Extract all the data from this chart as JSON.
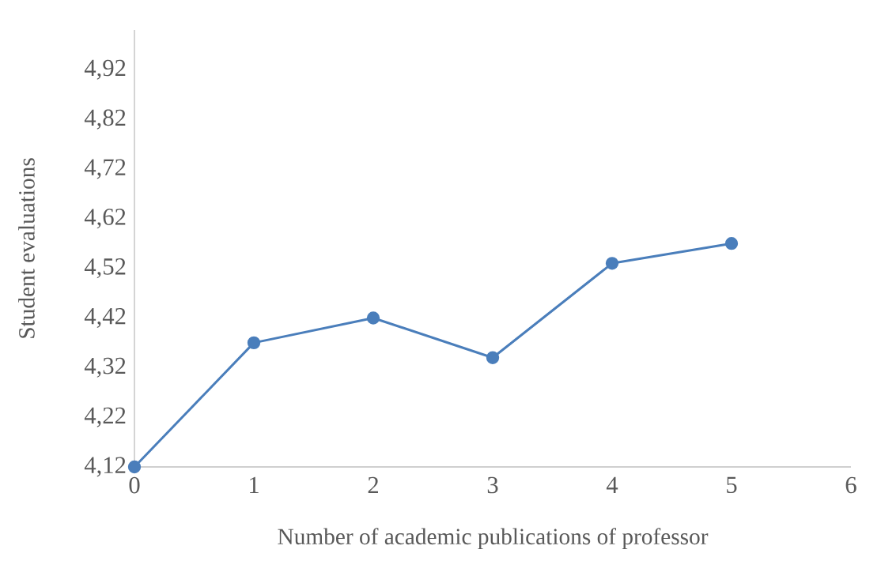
{
  "chart_data": {
    "type": "line",
    "xlabel": "Number of academic publications of professor",
    "ylabel": "Student evaluations",
    "x": [
      0,
      1,
      2,
      3,
      4,
      5
    ],
    "series": [
      {
        "color": "#4a7ebb",
        "values": [
          4.12,
          4.37,
          4.42,
          4.34,
          4.53,
          4.57
        ]
      }
    ],
    "xlim": [
      0,
      6
    ],
    "xticks": [
      0,
      1,
      2,
      3,
      4,
      5,
      6
    ],
    "ylim": [
      4.12,
      5.0
    ],
    "yticks": [
      {
        "value": 4.12,
        "label": "4,12"
      },
      {
        "value": 4.22,
        "label": "4,22"
      },
      {
        "value": 4.32,
        "label": "4,32"
      },
      {
        "value": 4.42,
        "label": "4,42"
      },
      {
        "value": 4.52,
        "label": "4,52"
      },
      {
        "value": 4.62,
        "label": "4,62"
      },
      {
        "value": 4.72,
        "label": "4,72"
      },
      {
        "value": 4.82,
        "label": "4,82"
      },
      {
        "value": 4.92,
        "label": "4,92"
      }
    ],
    "grid": false,
    "marker": "circle",
    "line_style": "solid"
  }
}
